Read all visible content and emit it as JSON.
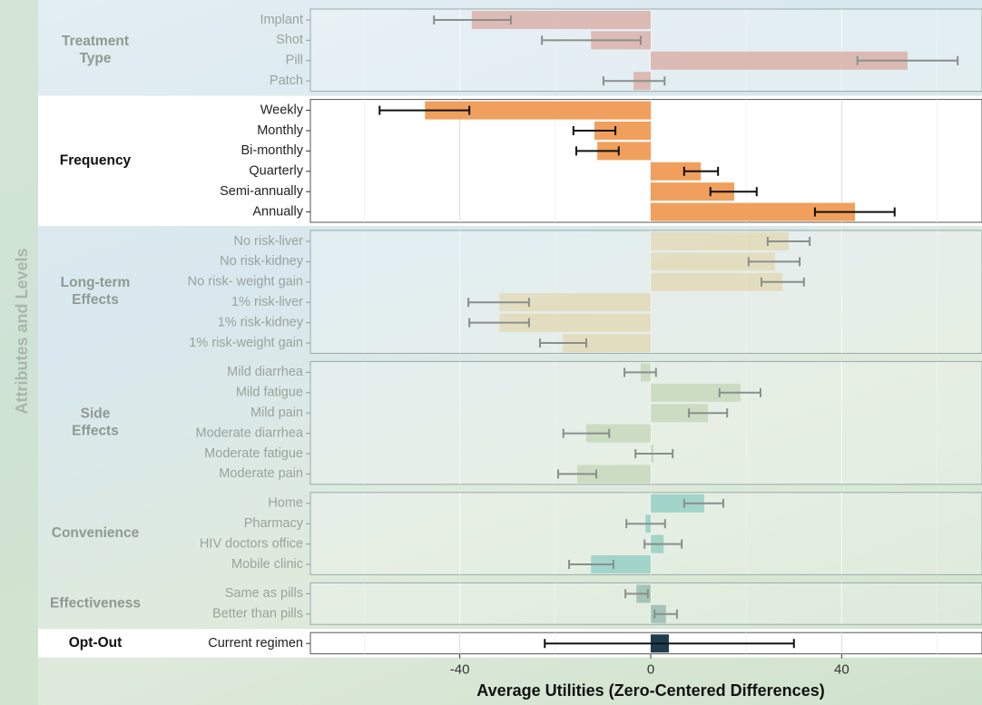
{
  "chart_data": {
    "type": "bar",
    "orientation": "horizontal",
    "x_label": "Average Utilities (Zero-Centered Differences)",
    "y_label": "Attributes and Levels",
    "xlim": [
      -71.3,
      69.4
    ],
    "xticks": [
      -40,
      0,
      40
    ],
    "minor_xticks": [
      -60,
      -20,
      20,
      60
    ],
    "grid": true,
    "error_bars": true,
    "groups": [
      {
        "name": "Treatment Type",
        "color": "#d9a49a",
        "highlighted": false,
        "categories": [
          "Implant",
          "Shot",
          "Pill",
          "Patch"
        ],
        "values": [
          -37.5,
          -12.5,
          53.8,
          -3.6
        ],
        "lower": [
          -45.4,
          -22.8,
          43.3,
          -9.9
        ],
        "upper": [
          -29.3,
          -2.1,
          64.3,
          2.9
        ]
      },
      {
        "name": "Frequency",
        "color": "#f0a05c",
        "highlighted": true,
        "categories": [
          "Weekly",
          "Monthly",
          "Bi-monthly",
          "Quarterly",
          "Semi-annually",
          "Annually"
        ],
        "values": [
          -47.3,
          -11.8,
          -11.2,
          10.5,
          17.5,
          42.8
        ],
        "lower": [
          -56.8,
          -16.2,
          -15.6,
          7.0,
          12.5,
          34.4
        ],
        "upper": [
          -38.0,
          -7.4,
          -6.7,
          14.1,
          22.2,
          51.1
        ]
      },
      {
        "name": "Long-term Effects",
        "color": "#e2d6ae",
        "highlighted": false,
        "categories": [
          "No risk-liver",
          "No risk-kidney",
          "No risk- weight gain",
          "1% risk-liver",
          "1% risk-kidney",
          "1% risk-weight gain"
        ],
        "values": [
          28.9,
          26.0,
          27.6,
          -31.7,
          -31.7,
          -18.4
        ],
        "lower": [
          24.5,
          20.5,
          23.2,
          -38.2,
          -38.0,
          -23.2
        ],
        "upper": [
          33.3,
          31.2,
          32.1,
          -25.5,
          -25.5,
          -13.5
        ]
      },
      {
        "name": "Side Effects",
        "color": "#bfd4b4",
        "highlighted": false,
        "categories": [
          "Mild diarrhea",
          "Mild fatigue",
          "Mild pain",
          "Moderate diarrhea",
          "Moderate fatigue",
          "Moderate pain"
        ],
        "values": [
          -2.1,
          18.8,
          12.0,
          -13.5,
          0.6,
          -15.4
        ],
        "lower": [
          -5.5,
          14.4,
          8.0,
          -18.3,
          -3.2,
          -19.4
        ],
        "upper": [
          1.1,
          23.0,
          16.0,
          -8.7,
          4.6,
          -11.4
        ]
      },
      {
        "name": "Convenience",
        "color": "#86c9c0",
        "highlighted": false,
        "categories": [
          "Home",
          "Pharmacy",
          "HIV doctors office",
          "Mobile clinic"
        ],
        "values": [
          11.2,
          -1.1,
          2.7,
          -12.5
        ],
        "lower": [
          7.0,
          -5.1,
          -1.3,
          -17.1
        ],
        "upper": [
          15.2,
          3.0,
          6.5,
          -7.8
        ]
      },
      {
        "name": "Effectiveness",
        "color": "#8cb3a6",
        "highlighted": false,
        "categories": [
          "Same as pills",
          "Better than pills"
        ],
        "values": [
          -3.0,
          3.2
        ],
        "lower": [
          -5.3,
          0.8
        ],
        "upper": [
          -0.6,
          5.5
        ]
      },
      {
        "name": "Opt-Out",
        "color": "#1e3c4e",
        "highlighted": true,
        "categories": [
          "Current regimen"
        ],
        "values": [
          3.8
        ],
        "lower": [
          -22.2
        ],
        "upper": [
          30.0
        ]
      }
    ]
  }
}
